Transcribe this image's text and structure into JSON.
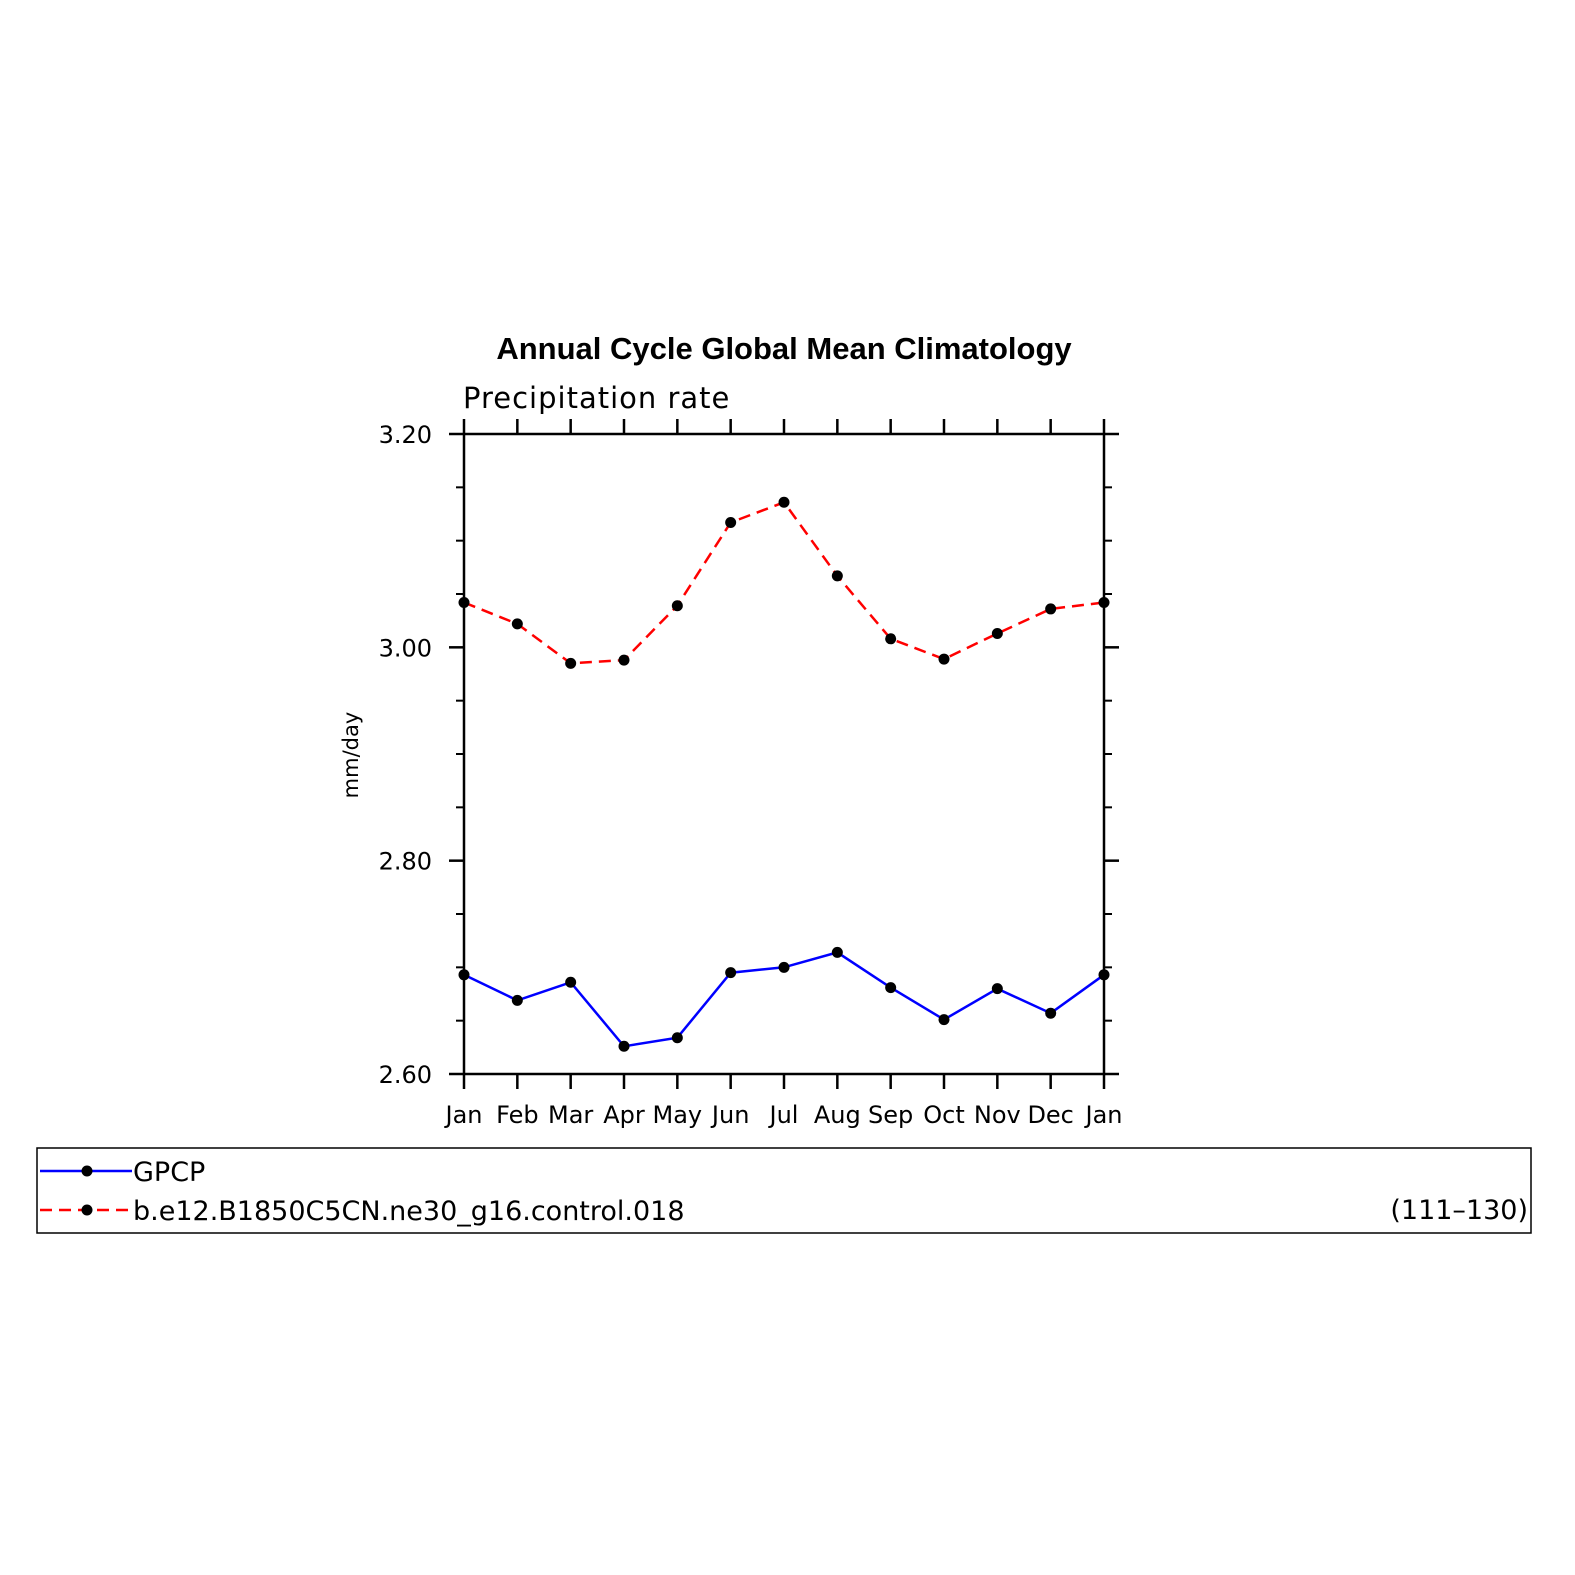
{
  "chart_data": {
    "type": "line",
    "title": "Annual Cycle Global Mean Climatology",
    "subtitle": "Precipitation rate",
    "ylabel": "mm/day",
    "xlabel": "",
    "categories": [
      "Jan",
      "Feb",
      "Mar",
      "Apr",
      "May",
      "Jun",
      "Jul",
      "Aug",
      "Sep",
      "Oct",
      "Nov",
      "Dec",
      "Jan"
    ],
    "ylim": [
      2.6,
      3.2
    ],
    "yticks": [
      2.6,
      2.8,
      3.0,
      3.2
    ],
    "ytick_labels": [
      "2.60",
      "2.80",
      "3.00",
      "3.20"
    ],
    "grid": false,
    "legend_position": "bottom",
    "series": [
      {
        "name": "GPCP",
        "color": "#0000ff",
        "dashed": false,
        "values": [
          2.693,
          2.669,
          2.686,
          2.626,
          2.634,
          2.695,
          2.7,
          2.714,
          2.681,
          2.651,
          2.68,
          2.657,
          2.693
        ]
      },
      {
        "name": "b.e12.B1850C5CN.ne30_g16.control.018",
        "color": "#ff0000",
        "dashed": true,
        "values": [
          3.042,
          3.022,
          2.985,
          2.988,
          3.039,
          3.117,
          3.136,
          3.067,
          3.008,
          2.989,
          3.013,
          3.036,
          3.042
        ]
      }
    ],
    "legend_note": "(111–130)"
  }
}
